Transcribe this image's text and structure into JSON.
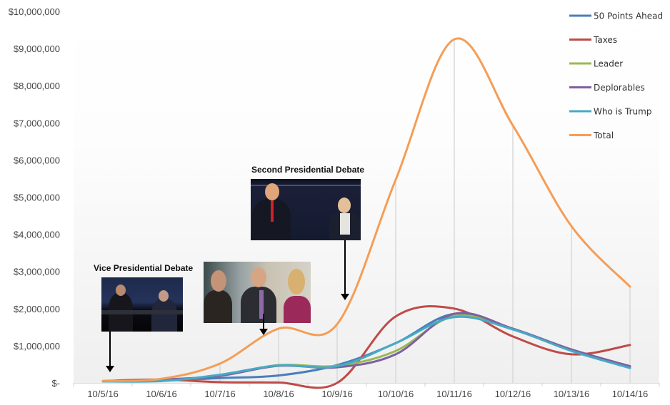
{
  "chart_data": {
    "type": "line",
    "title": "",
    "xlabel": "",
    "ylabel": "",
    "ylim": [
      0,
      10000000
    ],
    "grid": {
      "horizontal": false,
      "vertical_drop_lines": true
    },
    "legend_position": "right-top",
    "categories": [
      "10/5/16",
      "10/6/16",
      "10/7/16",
      "10/8/16",
      "10/9/16",
      "10/10/16",
      "10/11/16",
      "10/12/16",
      "10/13/16",
      "10/14/16"
    ],
    "y_tick_labels": [
      "$-",
      "$1,000,000",
      "$2,000,000",
      "$3,000,000",
      "$4,000,000",
      "$5,000,000",
      "$6,000,000",
      "$7,000,000",
      "$8,000,000",
      "$9,000,000",
      "$10,000,000"
    ],
    "series": [
      {
        "name": "50 Points Ahead",
        "color": "#4a7ebb",
        "values": [
          40000,
          60000,
          130000,
          200000,
          480000,
          1070000,
          1860000,
          1440000,
          880000,
          430000
        ]
      },
      {
        "name": "Taxes",
        "color": "#be4b48",
        "values": [
          50000,
          90000,
          20000,
          10000,
          0,
          1790000,
          2000000,
          1250000,
          770000,
          1020000
        ]
      },
      {
        "name": "Leader",
        "color": "#98b954",
        "values": [
          40000,
          70000,
          200000,
          480000,
          460000,
          860000,
          1800000,
          1440000,
          880000,
          430000
        ]
      },
      {
        "name": "Deplorables",
        "color": "#7d60a0",
        "values": [
          50000,
          90000,
          190000,
          460000,
          420000,
          770000,
          1860000,
          1460000,
          900000,
          450000
        ]
      },
      {
        "name": "Who is Trump",
        "color": "#46aac5",
        "values": [
          40000,
          50000,
          220000,
          470000,
          450000,
          1070000,
          1770000,
          1440000,
          860000,
          400000
        ]
      },
      {
        "name": "Total",
        "color": "#f59d56",
        "values": [
          50000,
          110000,
          520000,
          1460000,
          1580000,
          5470000,
          9250000,
          6930000,
          4220000,
          2590000
        ]
      }
    ],
    "annotations": [
      {
        "label": "Vice Presidential Debate",
        "x_category": "10/5/16"
      },
      {
        "label": "Second Presidential Debate",
        "x_category": "10/9/16"
      },
      {
        "label": "",
        "x_category": "10/8/16",
        "note": "photo annotation without title"
      }
    ]
  },
  "annotations": {
    "vp_debate": {
      "title": "Vice Presidential Debate"
    },
    "second_debate": {
      "title": "Second Presidential Debate"
    }
  }
}
